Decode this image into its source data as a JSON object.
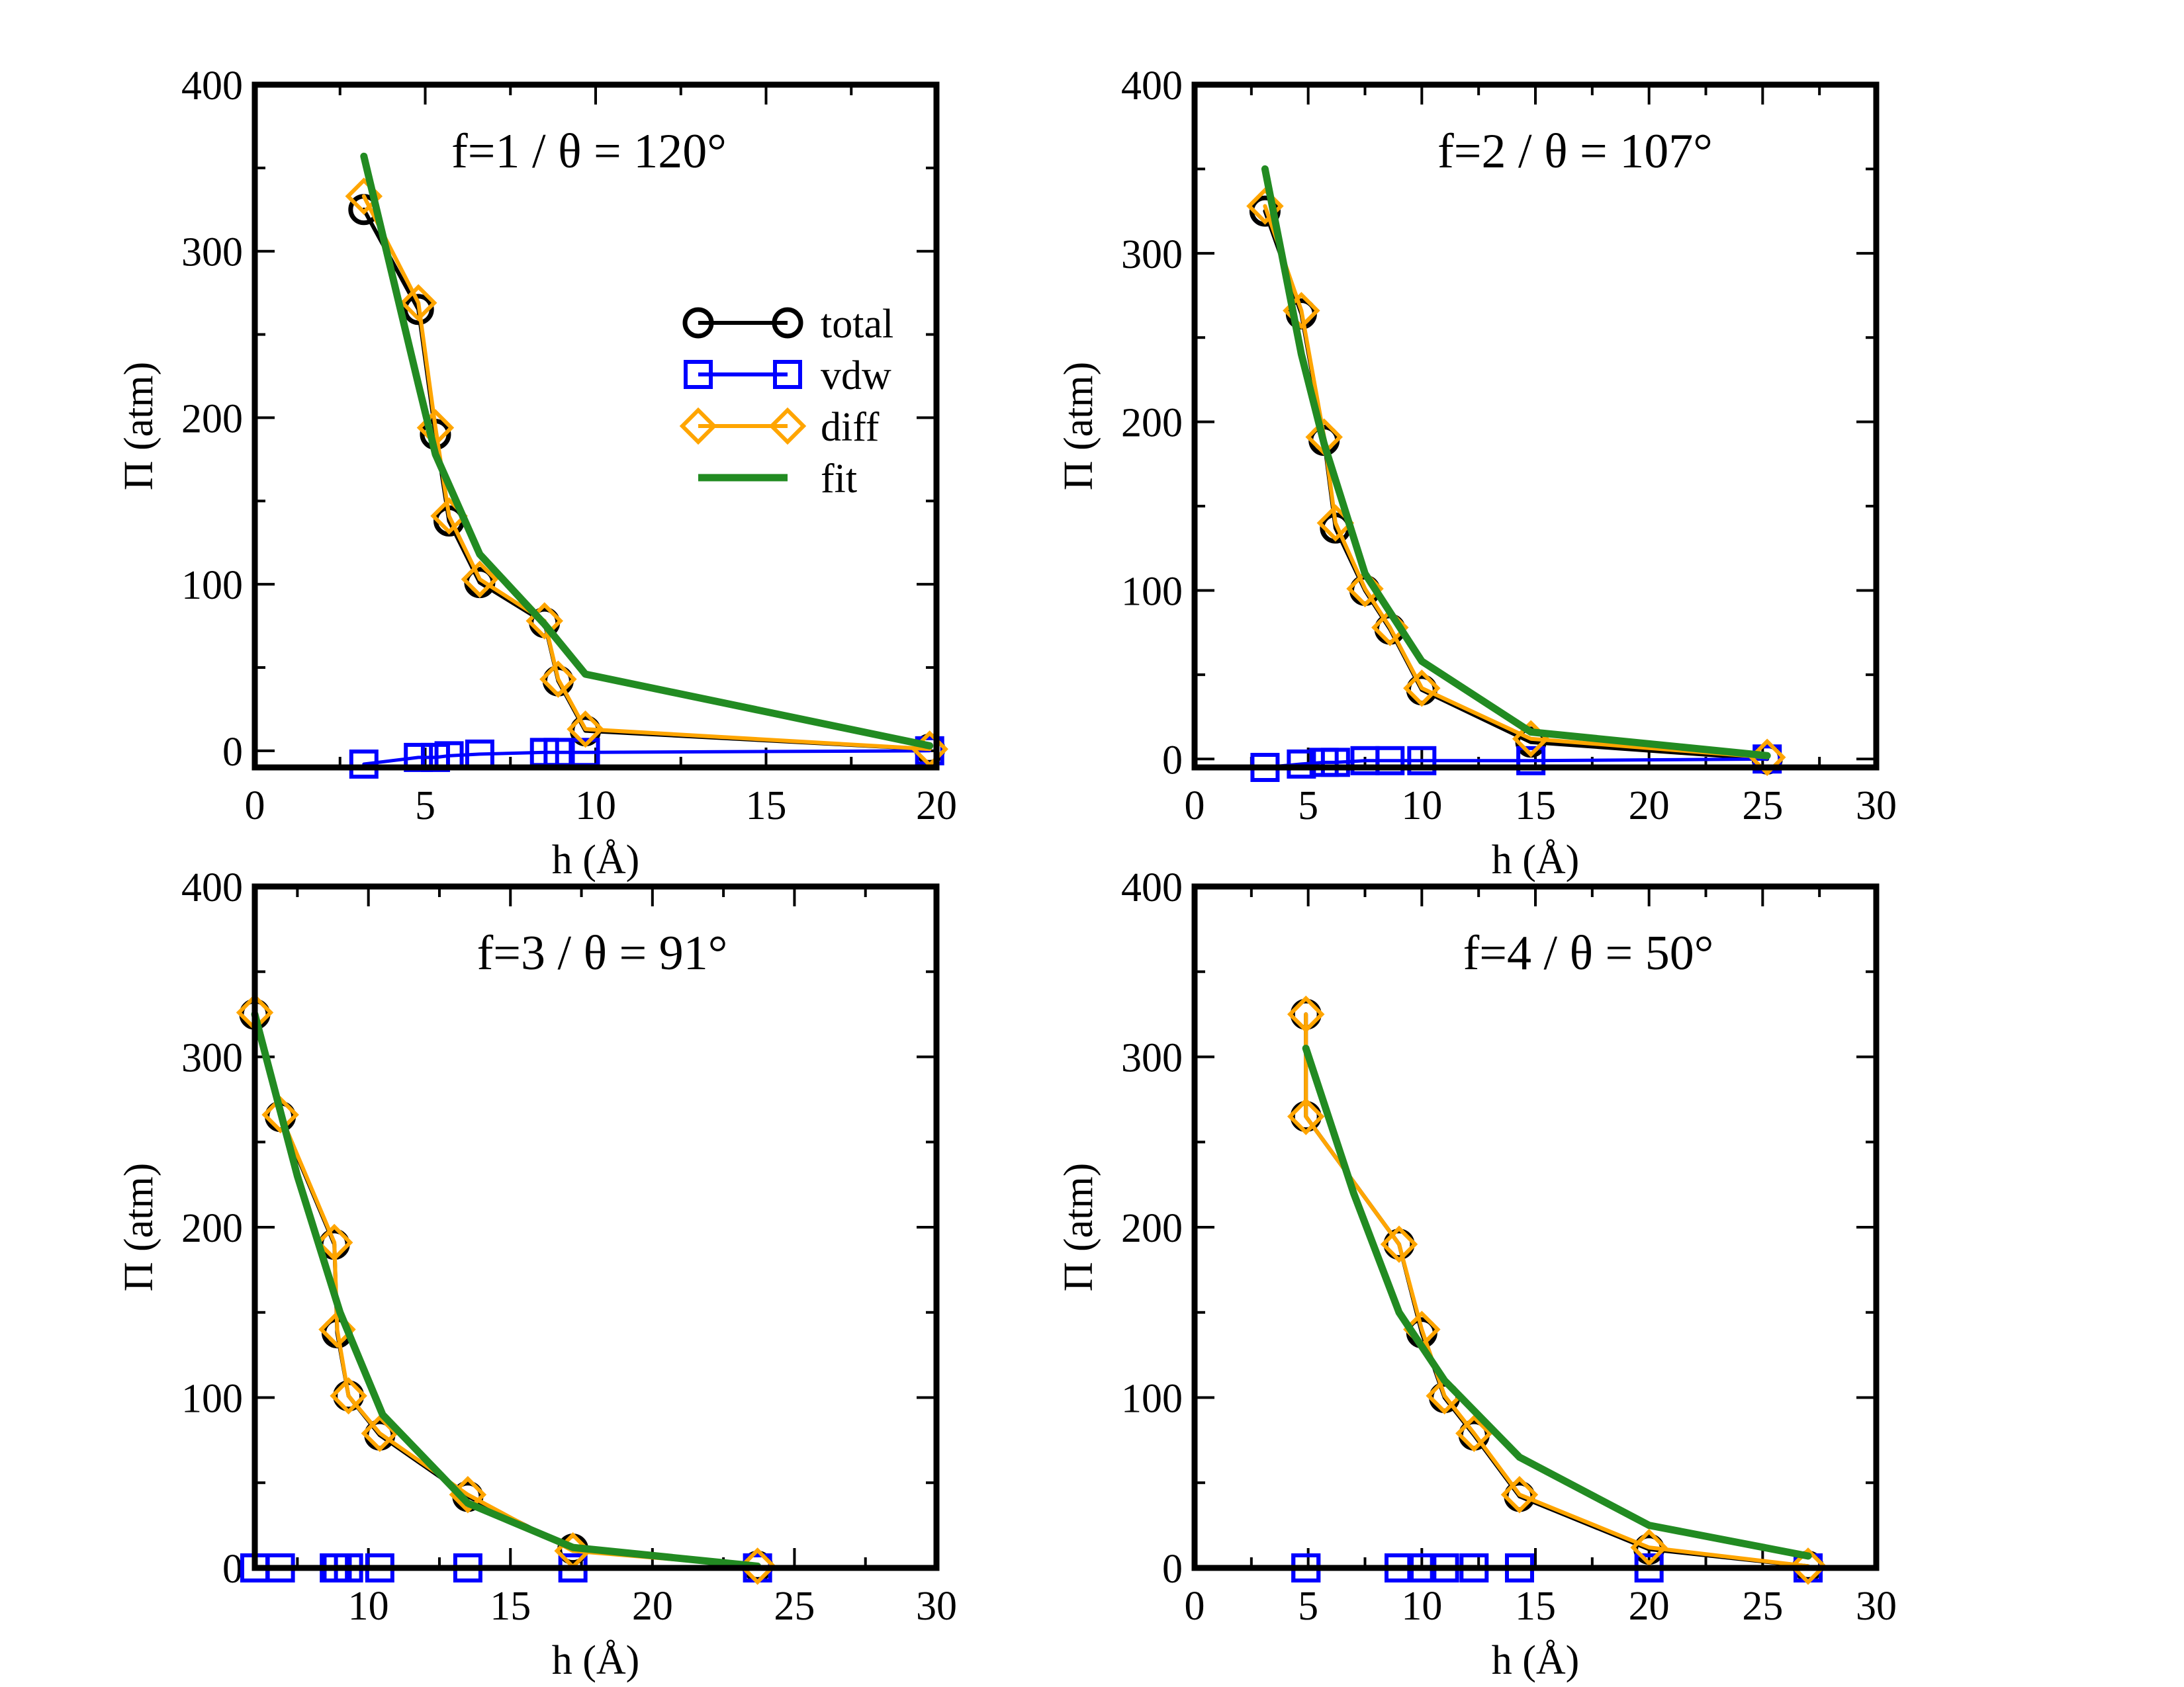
{
  "colors": {
    "total": "#000000",
    "vdw": "#0000ff",
    "diff": "#ffa500",
    "fit": "#228b22",
    "axes": "#000000"
  },
  "legend": {
    "entries": [
      {
        "key": "total",
        "label": "total",
        "marker": "circle"
      },
      {
        "key": "vdw",
        "label": "vdw",
        "marker": "square"
      },
      {
        "key": "diff",
        "label": "diff",
        "marker": "diamond"
      },
      {
        "key": "fit",
        "label": "fit",
        "marker": "line"
      }
    ]
  },
  "chart_data": [
    {
      "type": "line",
      "annotation": "f=1 / θ = 120°",
      "xlabel": "h (Å)",
      "ylabel": "Π (atm)",
      "xlim": [
        0,
        20
      ],
      "ylim": [
        -10,
        400
      ],
      "xticks": [
        0,
        5,
        10,
        15,
        20
      ],
      "yticks": [
        0,
        100,
        200,
        300,
        400
      ],
      "x_minor_step": 2.5,
      "y_minor_step": 50,
      "legend_position": "upper-right",
      "series": [
        {
          "name": "total",
          "points": [
            [
              3.2,
              325
            ],
            [
              4.8,
              265
            ],
            [
              5.3,
              190
            ],
            [
              5.7,
              138
            ],
            [
              6.6,
              101
            ],
            [
              8.5,
              77
            ],
            [
              8.9,
              42
            ],
            [
              9.7,
              12
            ],
            [
              19.8,
              1
            ]
          ]
        },
        {
          "name": "vdw",
          "points": [
            [
              3.2,
              -8
            ],
            [
              4.8,
              -4
            ],
            [
              5.3,
              -4
            ],
            [
              5.7,
              -3
            ],
            [
              6.6,
              -2
            ],
            [
              8.5,
              -1
            ],
            [
              8.9,
              -1
            ],
            [
              9.7,
              -1
            ],
            [
              19.8,
              0
            ]
          ]
        },
        {
          "name": "diff",
          "points": [
            [
              3.2,
              333
            ],
            [
              4.8,
              269
            ],
            [
              5.3,
              194
            ],
            [
              5.7,
              141
            ],
            [
              6.6,
              103
            ],
            [
              8.5,
              78
            ],
            [
              8.9,
              43
            ],
            [
              9.7,
              13
            ],
            [
              19.8,
              1
            ]
          ]
        },
        {
          "name": "fit",
          "points": [
            [
              3.2,
              357
            ],
            [
              4.8,
              220
            ],
            [
              5.3,
              178
            ],
            [
              6.6,
              118
            ],
            [
              8.5,
              76
            ],
            [
              9.7,
              46
            ],
            [
              19.8,
              3
            ]
          ]
        }
      ]
    },
    {
      "type": "line",
      "annotation": "f=2 / θ = 107°",
      "xlabel": "h (Å)",
      "ylabel": "Π (atm)",
      "xlim": [
        0,
        30
      ],
      "ylim": [
        -5,
        400
      ],
      "xticks": [
        0,
        5,
        10,
        15,
        20,
        25,
        30
      ],
      "yticks": [
        0,
        100,
        200,
        300,
        400
      ],
      "x_minor_step": 2.5,
      "y_minor_step": 50,
      "legend_position": "none",
      "series": [
        {
          "name": "total",
          "points": [
            [
              3.1,
              325
            ],
            [
              4.7,
              264
            ],
            [
              5.7,
              189
            ],
            [
              6.2,
              137
            ],
            [
              7.5,
              100
            ],
            [
              8.6,
              77
            ],
            [
              10.0,
              41
            ],
            [
              14.8,
              10
            ],
            [
              25.2,
              0
            ]
          ]
        },
        {
          "name": "vdw",
          "points": [
            [
              3.1,
              -5
            ],
            [
              4.7,
              -3
            ],
            [
              5.7,
              -2
            ],
            [
              6.2,
              -2
            ],
            [
              7.5,
              -1
            ],
            [
              8.6,
              -1
            ],
            [
              10.0,
              -1
            ],
            [
              14.8,
              -1
            ],
            [
              25.2,
              0
            ]
          ]
        },
        {
          "name": "diff",
          "points": [
            [
              3.1,
              328
            ],
            [
              4.7,
              266
            ],
            [
              5.7,
              191
            ],
            [
              6.2,
              140
            ],
            [
              7.5,
              101
            ],
            [
              8.6,
              78
            ],
            [
              10.0,
              42
            ],
            [
              14.8,
              12
            ],
            [
              25.2,
              1
            ]
          ]
        },
        {
          "name": "fit",
          "points": [
            [
              3.1,
              350
            ],
            [
              4.7,
              240
            ],
            [
              5.7,
              187
            ],
            [
              7.5,
              110
            ],
            [
              10.0,
              58
            ],
            [
              14.8,
              16
            ],
            [
              25.2,
              2
            ]
          ]
        }
      ]
    },
    {
      "type": "line",
      "annotation": "f=3 / θ = 91°",
      "xlabel": "h (Å)",
      "ylabel": "Π (atm)",
      "xlim": [
        6,
        30
      ],
      "ylim": [
        0,
        400
      ],
      "xticks": [
        10,
        15,
        20,
        25,
        30
      ],
      "yticks": [
        0,
        100,
        200,
        300,
        400
      ],
      "x_minor_step": 2.5,
      "y_minor_step": 50,
      "legend_position": "none",
      "series": [
        {
          "name": "total",
          "points": [
            [
              6.0,
              325
            ],
            [
              6.9,
              265
            ],
            [
              8.8,
              190
            ],
            [
              8.9,
              138
            ],
            [
              9.3,
              101
            ],
            [
              10.4,
              78
            ],
            [
              13.5,
              42
            ],
            [
              17.2,
              11
            ],
            [
              23.7,
              1
            ]
          ]
        },
        {
          "name": "vdw",
          "points": [
            [
              6.0,
              0
            ],
            [
              6.9,
              0
            ],
            [
              8.8,
              0
            ],
            [
              8.9,
              0
            ],
            [
              9.3,
              0
            ],
            [
              10.4,
              0
            ],
            [
              13.5,
              0
            ],
            [
              17.2,
              0
            ],
            [
              23.7,
              0
            ]
          ]
        },
        {
          "name": "diff",
          "points": [
            [
              6.0,
              326
            ],
            [
              6.9,
              266
            ],
            [
              8.8,
              191
            ],
            [
              8.9,
              140
            ],
            [
              9.3,
              101
            ],
            [
              10.4,
              79
            ],
            [
              13.5,
              43
            ],
            [
              17.2,
              10
            ],
            [
              23.7,
              1
            ]
          ]
        },
        {
          "name": "fit",
          "points": [
            [
              6.0,
              325
            ],
            [
              7.5,
              230
            ],
            [
              9.0,
              150
            ],
            [
              10.5,
              90
            ],
            [
              13.5,
              38
            ],
            [
              17.2,
              12
            ],
            [
              23.7,
              1
            ]
          ]
        }
      ]
    },
    {
      "type": "line",
      "annotation": "f=4 / θ = 50°",
      "xlabel": "h (Å)",
      "ylabel": "Π (atm)",
      "xlim": [
        0,
        30
      ],
      "ylim": [
        0,
        400
      ],
      "xticks": [
        0,
        5,
        10,
        15,
        20,
        25,
        30
      ],
      "yticks": [
        0,
        100,
        200,
        300,
        400
      ],
      "x_minor_step": 2.5,
      "y_minor_step": 50,
      "legend_position": "none",
      "series": [
        {
          "name": "total",
          "points": [
            [
              4.9,
              325
            ],
            [
              4.9,
              265
            ],
            [
              9.0,
              190
            ],
            [
              10.0,
              138
            ],
            [
              11.0,
              100
            ],
            [
              12.3,
              78
            ],
            [
              14.3,
              42
            ],
            [
              20.0,
              11
            ],
            [
              27.0,
              1
            ]
          ]
        },
        {
          "name": "vdw",
          "points": [
            [
              4.9,
              0
            ],
            [
              4.9,
              0
            ],
            [
              9.0,
              0
            ],
            [
              10.0,
              0
            ],
            [
              11.0,
              0
            ],
            [
              12.3,
              0
            ],
            [
              14.3,
              0
            ],
            [
              20.0,
              0
            ],
            [
              27.0,
              0
            ]
          ]
        },
        {
          "name": "diff",
          "points": [
            [
              4.9,
              325
            ],
            [
              4.9,
              265
            ],
            [
              9.0,
              190
            ],
            [
              10.0,
              140
            ],
            [
              11.0,
              101
            ],
            [
              12.3,
              79
            ],
            [
              14.3,
              43
            ],
            [
              20.0,
              12
            ],
            [
              27.0,
              1
            ]
          ]
        },
        {
          "name": "fit",
          "points": [
            [
              4.9,
              305
            ],
            [
              7.0,
              220
            ],
            [
              9.0,
              150
            ],
            [
              11.0,
              110
            ],
            [
              14.3,
              65
            ],
            [
              20.0,
              25
            ],
            [
              27.0,
              7
            ]
          ]
        }
      ]
    }
  ]
}
